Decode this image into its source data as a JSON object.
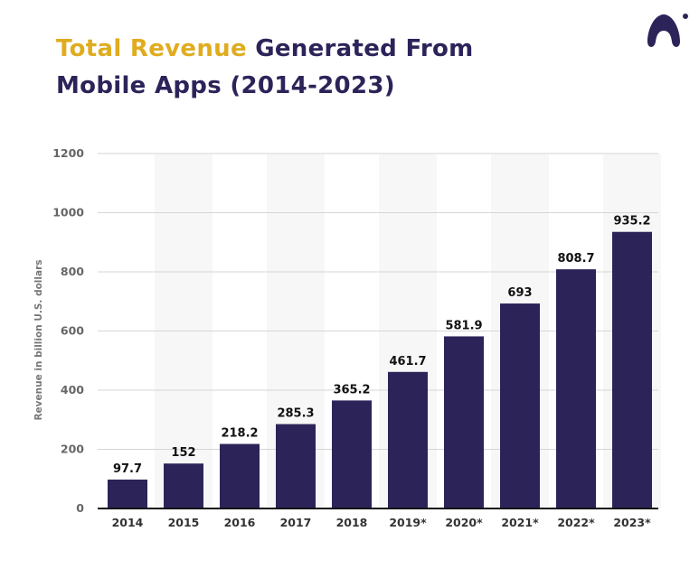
{
  "title": {
    "highlight": "Total Revenue",
    "rest_line1": " Generated From",
    "line2": "Mobile Apps (2014-2023)"
  },
  "logo": {
    "icon": "brand-a-logo-icon"
  },
  "colors": {
    "bar": "#2c2459",
    "title_highlight": "#e0ac1f",
    "title": "#2c2459",
    "band": "#f7f7f7",
    "grid": "#d6d6d6"
  },
  "chart_data": {
    "type": "bar",
    "title": "Total Revenue Generated From Mobile Apps (2014-2023)",
    "xlabel": "",
    "ylabel": "Revenue in billion U.S. dollars",
    "categories": [
      "2014",
      "2015",
      "2016",
      "2017",
      "2018",
      "2019*",
      "2020*",
      "2021*",
      "2022*",
      "2023*"
    ],
    "values": [
      97.7,
      152,
      218.2,
      285.3,
      365.2,
      461.7,
      581.9,
      693,
      808.7,
      935.2
    ],
    "data_labels": [
      "97.7",
      "152",
      "218.2",
      "285.3",
      "365.2",
      "461.7",
      "581.9",
      "693",
      "808.7",
      "935.2"
    ],
    "ylim": [
      0,
      1200
    ],
    "yticks": [
      0,
      200,
      400,
      600,
      800,
      1000,
      1200
    ],
    "grid": true,
    "alternating_bands": true,
    "legend": "none"
  }
}
